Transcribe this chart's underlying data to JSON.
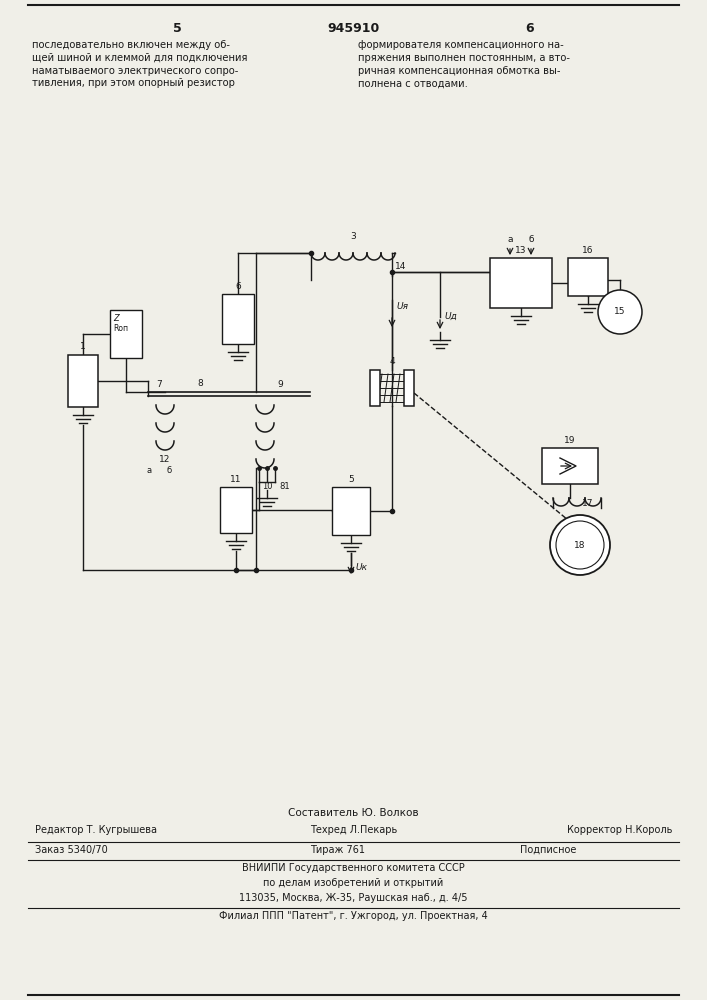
{
  "page_number_left": "5",
  "page_number_center": "945910",
  "page_number_right": "6",
  "text_left": "последовательно включен между об-\nщей шиной и клеммой для подключения\nнаматываемого электрического сопро-\nтивления, при этом опорный резистор",
  "text_right": "формирователя компенсационного на-\nпряжения выполнен постоянным, а вто-\nричная компенсационная обмотка вы-\nполнена с отводами.",
  "footer_line1": "Составитель Ю. Волков",
  "footer_line2_left": "Редактор Т. Кугрышева",
  "footer_line2_mid": "Техред Л.Пекарь",
  "footer_line2_right": "Корректор Н.Король",
  "footer_line3_left": "Заказ 5340/70",
  "footer_line3_mid": "Тираж 761",
  "footer_line3_right": "Подписное",
  "footer_line4": "ВНИИПИ Государственного комитета СССР",
  "footer_line5": "по делам изобретений и открытий",
  "footer_line6": "113035, Москва, Ж-35, Раушская наб., д. 4/5",
  "footer_line7": "Филиал ППП \"Патент\", г. Ужгород, ул. Проектная, 4",
  "bg_color": "#f0efe8",
  "line_color": "#1a1a1a",
  "text_color": "#1a1a1a"
}
